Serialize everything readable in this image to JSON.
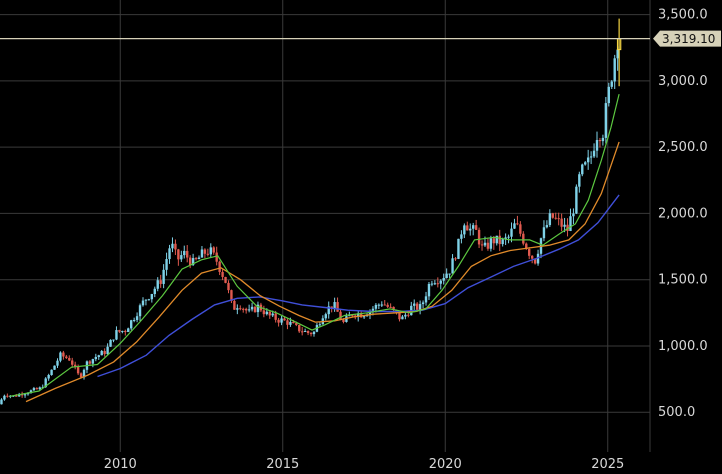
{
  "chart_data": {
    "type": "candlestick",
    "x_ticks": [
      "2010",
      "2015",
      "2020",
      "2025"
    ],
    "y_ticks": [
      "500.0",
      "1,000.0",
      "1,500.0",
      "2,000.0",
      "2,500.0",
      "3,000.0",
      "3,500.0"
    ],
    "ylim": [
      200,
      3550
    ],
    "xlim": [
      2006.3,
      2026.3
    ],
    "grid": true,
    "last_price_label": "3,319.10",
    "last_price": 3319.1,
    "colors": {
      "background": "#000000",
      "grid": "#3a3a3a",
      "up_candle": "#7fd2e8",
      "down_candle": "#e05a4f",
      "last_candle": "#f5d542",
      "ma_short": "#5cc840",
      "ma_mid": "#e08a2a",
      "ma_long": "#3f4fd8",
      "price_line": "#d6d1b8"
    },
    "close": [
      [
        2006.3,
        560
      ],
      [
        2006.5,
        640
      ],
      [
        2006.75,
        620
      ],
      [
        2007.0,
        640
      ],
      [
        2007.3,
        660
      ],
      [
        2007.6,
        680
      ],
      [
        2007.9,
        800
      ],
      [
        2008.2,
        930
      ],
      [
        2008.5,
        900
      ],
      [
        2008.8,
        760
      ],
      [
        2009.0,
        870
      ],
      [
        2009.3,
        920
      ],
      [
        2009.6,
        960
      ],
      [
        2009.9,
        1100
      ],
      [
        2010.2,
        1120
      ],
      [
        2010.5,
        1230
      ],
      [
        2010.8,
        1350
      ],
      [
        2011.0,
        1400
      ],
      [
        2011.3,
        1500
      ],
      [
        2011.6,
        1780
      ],
      [
        2011.8,
        1650
      ],
      [
        2012.0,
        1700
      ],
      [
        2012.3,
        1620
      ],
      [
        2012.6,
        1700
      ],
      [
        2012.8,
        1720
      ],
      [
        2013.0,
        1650
      ],
      [
        2013.3,
        1480
      ],
      [
        2013.5,
        1280
      ],
      [
        2013.7,
        1320
      ],
      [
        2014.0,
        1250
      ],
      [
        2014.3,
        1300
      ],
      [
        2014.6,
        1230
      ],
      [
        2014.9,
        1200
      ],
      [
        2015.2,
        1180
      ],
      [
        2015.5,
        1130
      ],
      [
        2015.8,
        1100
      ],
      [
        2016.0,
        1100
      ],
      [
        2016.3,
        1250
      ],
      [
        2016.6,
        1320
      ],
      [
        2016.9,
        1170
      ],
      [
        2017.2,
        1250
      ],
      [
        2017.5,
        1240
      ],
      [
        2017.8,
        1280
      ],
      [
        2018.1,
        1330
      ],
      [
        2018.4,
        1270
      ],
      [
        2018.7,
        1200
      ],
      [
        2019.0,
        1290
      ],
      [
        2019.3,
        1290
      ],
      [
        2019.6,
        1500
      ],
      [
        2019.9,
        1510
      ],
      [
        2020.2,
        1580
      ],
      [
        2020.5,
        1800
      ],
      [
        2020.6,
        1960
      ],
      [
        2020.8,
        1880
      ],
      [
        2021.0,
        1860
      ],
      [
        2021.2,
        1720
      ],
      [
        2021.5,
        1800
      ],
      [
        2021.8,
        1780
      ],
      [
        2022.0,
        1820
      ],
      [
        2022.2,
        1920
      ],
      [
        2022.4,
        1830
      ],
      [
        2022.6,
        1720
      ],
      [
        2022.8,
        1640
      ],
      [
        2023.0,
        1820
      ],
      [
        2023.3,
        1980
      ],
      [
        2023.6,
        1920
      ],
      [
        2023.8,
        1870
      ],
      [
        2024.0,
        2050
      ],
      [
        2024.2,
        2300
      ],
      [
        2024.5,
        2400
      ],
      [
        2024.7,
        2600
      ],
      [
        2024.9,
        2620
      ],
      [
        2025.0,
        2800
      ],
      [
        2025.2,
        3100
      ],
      [
        2025.35,
        3319.1
      ]
    ],
    "ma_short": [
      [
        2006.6,
        620
      ],
      [
        2007.5,
        660
      ],
      [
        2008.5,
        840
      ],
      [
        2009.3,
        860
      ],
      [
        2010.0,
        1020
      ],
      [
        2010.6,
        1180
      ],
      [
        2011.3,
        1380
      ],
      [
        2011.9,
        1580
      ],
      [
        2012.5,
        1650
      ],
      [
        2013.0,
        1680
      ],
      [
        2013.6,
        1450
      ],
      [
        2014.2,
        1300
      ],
      [
        2014.8,
        1250
      ],
      [
        2015.4,
        1180
      ],
      [
        2015.9,
        1120
      ],
      [
        2016.3,
        1160
      ],
      [
        2016.9,
        1230
      ],
      [
        2017.6,
        1250
      ],
      [
        2018.3,
        1280
      ],
      [
        2018.9,
        1250
      ],
      [
        2019.4,
        1280
      ],
      [
        2019.9,
        1420
      ],
      [
        2020.4,
        1600
      ],
      [
        2020.9,
        1800
      ],
      [
        2021.5,
        1820
      ],
      [
        2022.0,
        1800
      ],
      [
        2022.6,
        1800
      ],
      [
        2023.0,
        1760
      ],
      [
        2023.6,
        1860
      ],
      [
        2024.0,
        1920
      ],
      [
        2024.4,
        2100
      ],
      [
        2024.8,
        2400
      ],
      [
        2025.1,
        2650
      ],
      [
        2025.35,
        2900
      ]
    ],
    "ma_mid": [
      [
        2007.1,
        580
      ],
      [
        2008.0,
        680
      ],
      [
        2009.0,
        780
      ],
      [
        2009.8,
        880
      ],
      [
        2010.5,
        1030
      ],
      [
        2011.2,
        1220
      ],
      [
        2011.9,
        1420
      ],
      [
        2012.5,
        1550
      ],
      [
        2013.1,
        1590
      ],
      [
        2013.7,
        1500
      ],
      [
        2014.3,
        1380
      ],
      [
        2014.9,
        1300
      ],
      [
        2015.5,
        1230
      ],
      [
        2016.0,
        1180
      ],
      [
        2016.6,
        1190
      ],
      [
        2017.2,
        1220
      ],
      [
        2017.8,
        1240
      ],
      [
        2018.5,
        1250
      ],
      [
        2019.1,
        1260
      ],
      [
        2019.6,
        1300
      ],
      [
        2020.2,
        1420
      ],
      [
        2020.8,
        1600
      ],
      [
        2021.4,
        1680
      ],
      [
        2022.0,
        1720
      ],
      [
        2022.6,
        1740
      ],
      [
        2023.2,
        1760
      ],
      [
        2023.8,
        1800
      ],
      [
        2024.3,
        1920
      ],
      [
        2024.8,
        2150
      ],
      [
        2025.35,
        2540
      ]
    ],
    "ma_long": [
      [
        2009.3,
        770
      ],
      [
        2010.0,
        830
      ],
      [
        2010.8,
        930
      ],
      [
        2011.5,
        1080
      ],
      [
        2012.2,
        1200
      ],
      [
        2012.9,
        1310
      ],
      [
        2013.6,
        1360
      ],
      [
        2014.3,
        1370
      ],
      [
        2015.0,
        1340
      ],
      [
        2015.6,
        1310
      ],
      [
        2016.3,
        1290
      ],
      [
        2017.0,
        1270
      ],
      [
        2017.8,
        1260
      ],
      [
        2018.6,
        1260
      ],
      [
        2019.3,
        1270
      ],
      [
        2020.0,
        1320
      ],
      [
        2020.7,
        1440
      ],
      [
        2021.4,
        1520
      ],
      [
        2022.1,
        1600
      ],
      [
        2022.8,
        1660
      ],
      [
        2023.5,
        1730
      ],
      [
        2024.1,
        1800
      ],
      [
        2024.7,
        1930
      ],
      [
        2025.35,
        2140
      ]
    ]
  }
}
